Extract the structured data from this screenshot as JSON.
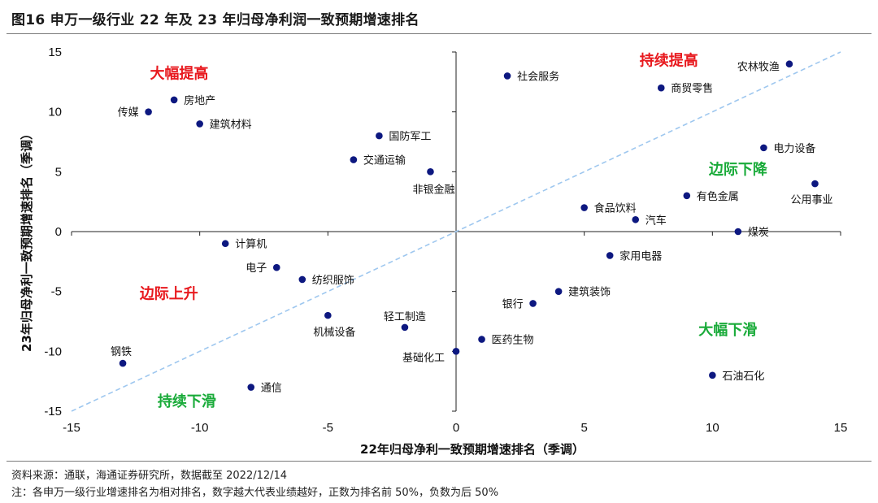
{
  "header": {
    "title": "图16 申万一级行业 22 年及 23 年归母净利润一致预期增速排名"
  },
  "footer": {
    "source": "资料来源：通联，海通证券研究所，数据截至 2022/12/14",
    "note": "注：各申万一级行业增速排名为相对排名，数字越大代表业绩越好，正数为排名前 50%，负数为后 50%"
  },
  "colors": {
    "point": "#0d1880",
    "diagonal": "#9ec7ef",
    "quad_red": "#e8191e",
    "quad_green": "#1aab3a"
  },
  "chart_data": {
    "type": "scatter",
    "title": "",
    "xlabel": "22年归母净利一致预期增速排名（季调）",
    "ylabel": "23年归母净利一致预期增速排名（季调）",
    "xlim": [
      -15,
      15
    ],
    "ylim": [
      -15,
      15
    ],
    "xticks": [
      -15,
      -10,
      -5,
      0,
      5,
      10,
      15
    ],
    "yticks": [
      15,
      10,
      5,
      0,
      -5,
      -10,
      -15
    ],
    "grid": false,
    "reference_line": {
      "from": [
        -15,
        -15
      ],
      "to": [
        15,
        15
      ],
      "style": "dashed"
    },
    "points": [
      {
        "name": "社会服务",
        "x": 2,
        "y": 13
      },
      {
        "name": "农林牧渔",
        "x": 13,
        "y": 14
      },
      {
        "name": "商贸零售",
        "x": 8,
        "y": 12
      },
      {
        "name": "房地产",
        "x": -11,
        "y": 11
      },
      {
        "name": "传媒",
        "x": -12,
        "y": 10
      },
      {
        "name": "建筑材料",
        "x": -10,
        "y": 9
      },
      {
        "name": "国防军工",
        "x": -3,
        "y": 8
      },
      {
        "name": "电力设备",
        "x": 12,
        "y": 7
      },
      {
        "name": "交通运输",
        "x": -4,
        "y": 6
      },
      {
        "name": "非银金融",
        "x": -1,
        "y": 5
      },
      {
        "name": "公用事业",
        "x": 14,
        "y": 4
      },
      {
        "name": "有色金属",
        "x": 9,
        "y": 3
      },
      {
        "name": "食品饮料",
        "x": 5,
        "y": 2
      },
      {
        "name": "汽车",
        "x": 7,
        "y": 1
      },
      {
        "name": "煤炭",
        "x": 11,
        "y": 0
      },
      {
        "name": "计算机",
        "x": -9,
        "y": -1
      },
      {
        "name": "家用电器",
        "x": 6,
        "y": -2
      },
      {
        "name": "电子",
        "x": -7,
        "y": -3
      },
      {
        "name": "纺织服饰",
        "x": -6,
        "y": -4
      },
      {
        "name": "建筑装饰",
        "x": 4,
        "y": -5
      },
      {
        "name": "银行",
        "x": 3,
        "y": -6
      },
      {
        "name": "机械设备",
        "x": -5,
        "y": -7
      },
      {
        "name": "轻工制造",
        "x": -2,
        "y": -8
      },
      {
        "name": "医药生物",
        "x": 1,
        "y": -9
      },
      {
        "name": "基础化工",
        "x": 0,
        "y": -10
      },
      {
        "name": "钢铁",
        "x": -13,
        "y": -11
      },
      {
        "name": "石油石化",
        "x": 10,
        "y": -12
      },
      {
        "name": "通信",
        "x": -8,
        "y": -13
      }
    ],
    "annotations": [
      {
        "text": "大幅提高",
        "x": -10.8,
        "y": 13.2,
        "color": "red"
      },
      {
        "text": "持续提高",
        "x": 8.3,
        "y": 14.3,
        "color": "red"
      },
      {
        "text": "边际下降",
        "x": 11.0,
        "y": 5.2,
        "color": "green"
      },
      {
        "text": "边际上升",
        "x": -11.2,
        "y": -5.2,
        "color": "red"
      },
      {
        "text": "大幅下滑",
        "x": 10.6,
        "y": -8.2,
        "color": "green"
      },
      {
        "text": "持续下滑",
        "x": -10.5,
        "y": -14.2,
        "color": "green"
      }
    ]
  }
}
